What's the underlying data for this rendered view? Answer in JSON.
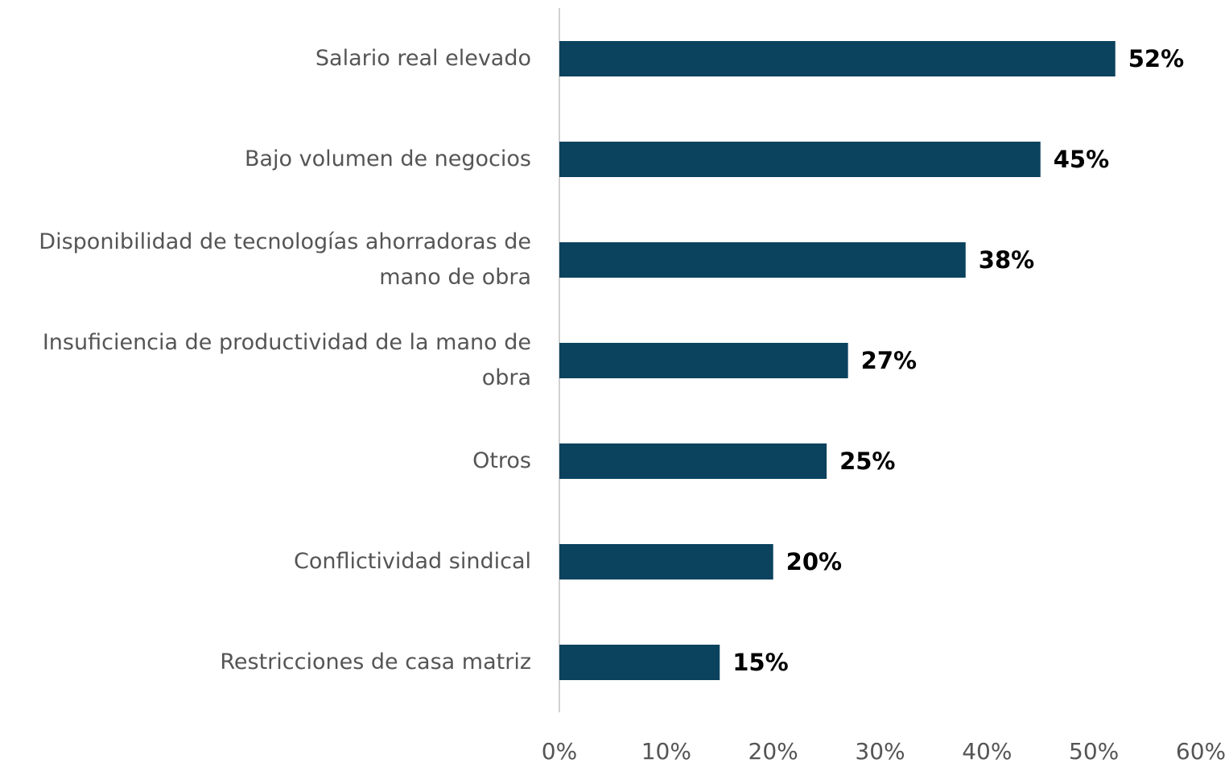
{
  "chart_data": {
    "type": "bar",
    "orientation": "horizontal",
    "categories": [
      "Salario real elevado",
      "Bajo volumen de negocios",
      "Disponibilidad de tecnologías ahorradoras de mano de obra",
      "Insuficiencia de productividad de la mano de obra",
      "Otros",
      "Conflictividad sindical",
      "Restricciones de casa matriz"
    ],
    "values": [
      52,
      45,
      38,
      27,
      25,
      20,
      15
    ],
    "value_labels": [
      "52%",
      "45%",
      "38%",
      "27%",
      "25%",
      "20%",
      "15%"
    ],
    "color": "#0b425e",
    "xlim": [
      0,
      60
    ],
    "xticks": [
      {
        "value": 0,
        "label": "0%"
      },
      {
        "value": 10,
        "label": "10%"
      },
      {
        "value": 20,
        "label": "20%"
      },
      {
        "value": 30,
        "label": "30%"
      },
      {
        "value": 40,
        "label": "40%"
      },
      {
        "value": 50,
        "label": "50%"
      },
      {
        "value": 60,
        "label": "60%"
      }
    ]
  }
}
